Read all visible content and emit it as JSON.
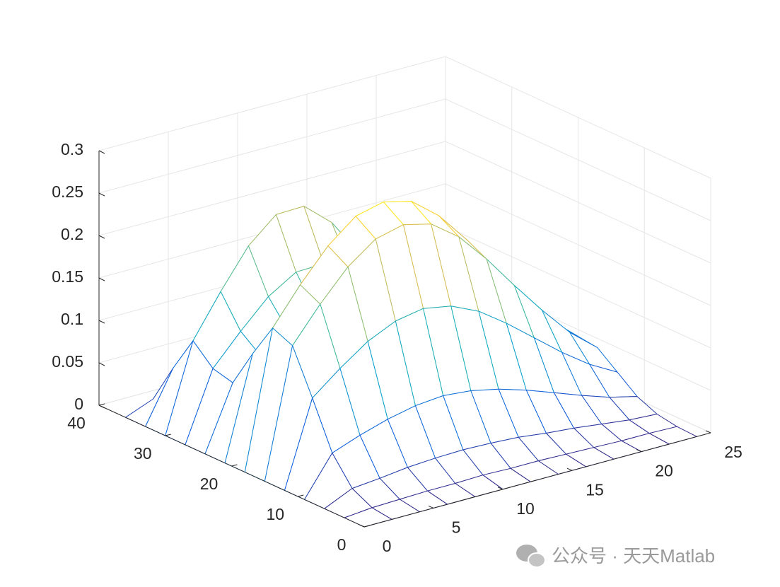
{
  "chart_data": {
    "type": "mesh",
    "x": [
      0,
      2,
      4,
      6,
      8,
      10,
      12,
      14,
      16,
      18,
      20,
      22,
      24
    ],
    "y": [
      0,
      3,
      6,
      9,
      12,
      15,
      18,
      21,
      24,
      27,
      30,
      33,
      36
    ],
    "z": [
      [
        0,
        0,
        0,
        0,
        0,
        0,
        0,
        0,
        0,
        0,
        0,
        0,
        0
      ],
      [
        0,
        0.003,
        0.004,
        0.005,
        0.005,
        0.006,
        0.005,
        0.005,
        0.004,
        0.003,
        0.002,
        0.002,
        0.001
      ],
      [
        0,
        0.015,
        0.018,
        0.022,
        0.024,
        0.025,
        0.024,
        0.022,
        0.018,
        0.015,
        0.011,
        0.007,
        0.005
      ],
      [
        0,
        0.046,
        0.058,
        0.068,
        0.075,
        0.078,
        0.075,
        0.068,
        0.058,
        0.046,
        0.034,
        0.023,
        0.015
      ],
      [
        0,
        0.1,
        0.126,
        0.149,
        0.164,
        0.17,
        0.164,
        0.149,
        0.126,
        0.1,
        0.074,
        0.051,
        0.033
      ],
      [
        0,
        0.151,
        0.191,
        0.226,
        0.25,
        0.258,
        0.25,
        0.226,
        0.191,
        0.151,
        0.113,
        0.078,
        0.051
      ],
      [
        0,
        0.161,
        0.203,
        0.24,
        0.266,
        0.274,
        0.266,
        0.24,
        0.203,
        0.161,
        0.12,
        0.082,
        0.054
      ],
      [
        0,
        0.12,
        0.152,
        0.18,
        0.199,
        0.205,
        0.199,
        0.18,
        0.151,
        0.12,
        0.089,
        0.061,
        0.04
      ],
      [
        0,
        0.075,
        0.098,
        0.118,
        0.131,
        0.134,
        0.128,
        0.112,
        0.091,
        0.07,
        0.05,
        0.034,
        0.022
      ],
      [
        0,
        0.081,
        0.116,
        0.148,
        0.168,
        0.169,
        0.152,
        0.121,
        0.087,
        0.057,
        0.034,
        0.019,
        0.01
      ],
      [
        0,
        0.103,
        0.152,
        0.197,
        0.225,
        0.226,
        0.198,
        0.153,
        0.104,
        0.063,
        0.033,
        0.016,
        0.007
      ],
      [
        0,
        0.06,
        0.089,
        0.116,
        0.133,
        0.133,
        0.117,
        0.089,
        0.06,
        0.036,
        0.019,
        0.009,
        0.003
      ],
      [
        0,
        0.013,
        0.02,
        0.026,
        0.029,
        0.029,
        0.026,
        0.02,
        0.013,
        0.008,
        0.004,
        0.002,
        0.001
      ]
    ],
    "xlim": [
      0,
      25
    ],
    "ylim": [
      0,
      40
    ],
    "zlim": [
      0,
      0.3
    ],
    "xticks": [
      0,
      5,
      10,
      15,
      20,
      25
    ],
    "yticks": [
      0,
      10,
      20,
      30,
      40
    ],
    "zticks": [
      0,
      0.05,
      0.1,
      0.15,
      0.2,
      0.25,
      0.3
    ],
    "grid": true,
    "colormap": [
      "#352a87",
      "#0f5cdd",
      "#1481d6",
      "#06a4ca",
      "#2eb7a4",
      "#87bf77",
      "#d1bb59",
      "#fec832",
      "#f9fb0e"
    ]
  },
  "watermark": "公众号 · 天天Matlab"
}
